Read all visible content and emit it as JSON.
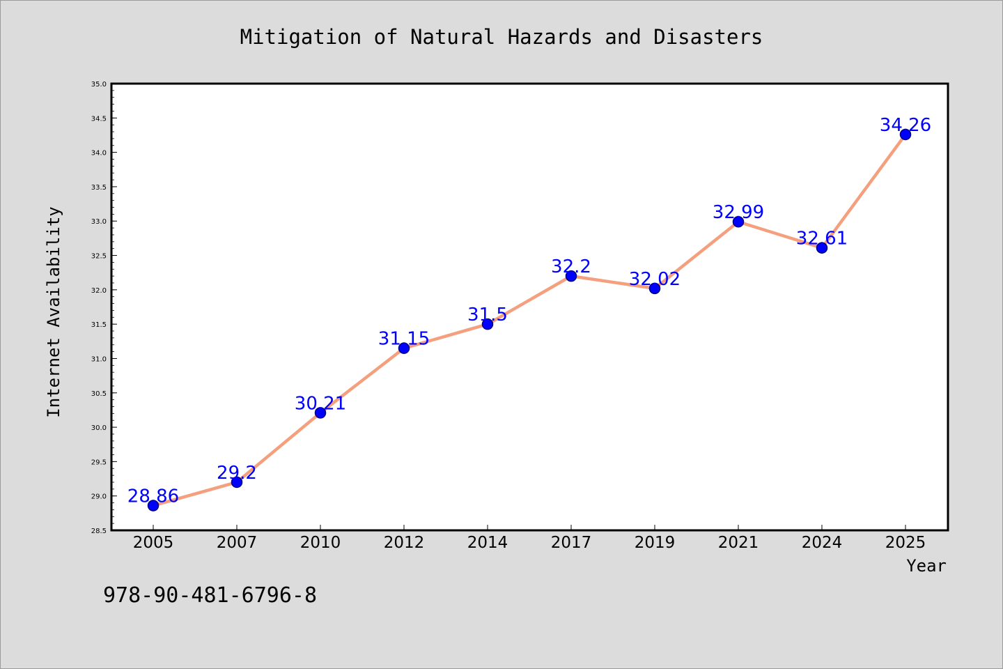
{
  "chart_data": {
    "type": "line",
    "title": "Mitigation of Natural Hazards and Disasters",
    "xlabel": "Year",
    "ylabel": "Internet Availability",
    "categories": [
      "2005",
      "2007",
      "2010",
      "2012",
      "2014",
      "2017",
      "2019",
      "2021",
      "2024",
      "2025"
    ],
    "series": [
      {
        "values": [
          28.86,
          29.2,
          30.21,
          31.15,
          31.5,
          32.2,
          32.02,
          32.99,
          32.61,
          34.26
        ],
        "labels": [
          "28.86",
          "29.2",
          "30.21",
          "31.15",
          "31.5",
          "32.2",
          "32.02",
          "32.99",
          "32.61",
          "34.26"
        ]
      }
    ],
    "ylim": [
      28.5,
      35.0
    ],
    "yticks": [
      "28.5",
      "29.0",
      "29.5",
      "30.0",
      "30.5",
      "31.0",
      "31.5",
      "32.0",
      "32.5",
      "33.0",
      "33.5",
      "34.0",
      "34.5",
      "35.0"
    ],
    "grid": false,
    "colors": {
      "line": "#f4a07f",
      "marker": "#0000ff",
      "marker_edge": "#000080",
      "data_label": "#0000ff",
      "plot_background": "#ffffff",
      "figure_background": "#dcdcdc"
    }
  },
  "footer": {
    "isbn": "978-90-481-6796-8"
  }
}
